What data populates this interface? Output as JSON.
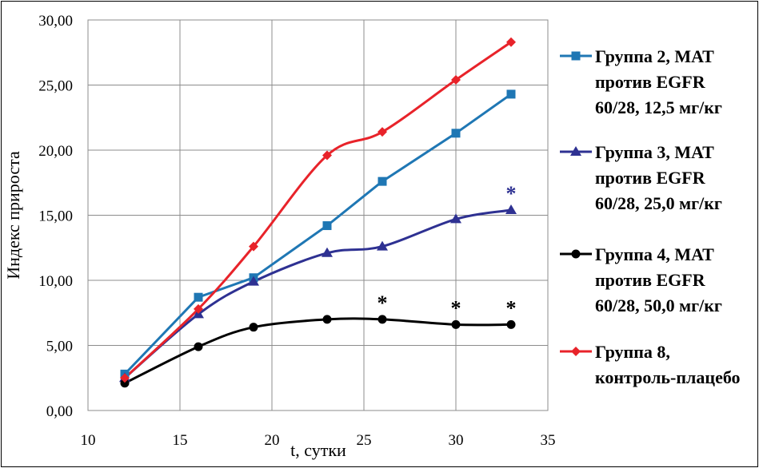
{
  "chart_data": {
    "type": "line",
    "title": "",
    "xlabel": "t, сутки",
    "ylabel": "Индекс прироста",
    "xlim": [
      10,
      35
    ],
    "ylim": [
      0,
      30
    ],
    "x_ticks": [
      "10",
      "15",
      "20",
      "25",
      "30",
      "35"
    ],
    "y_ticks": [
      "0,00",
      "5,00",
      "10,00",
      "15,00",
      "20,00",
      "25,00",
      "30,00"
    ],
    "grid": true,
    "legend_position": "right",
    "series": [
      {
        "name": "Группа 2, МАТ против EGFR 60/28, 12,5 мг/кг",
        "legend_lines": [
          "Группа 2, МАТ",
          "против EGFR",
          "60/28, 12,5 мг/кг"
        ],
        "color": "#1f77b4",
        "marker": "square",
        "x": [
          12,
          16,
          19,
          23,
          26,
          30,
          33
        ],
        "values": [
          2.8,
          8.7,
          10.2,
          14.2,
          17.6,
          21.3,
          24.3
        ]
      },
      {
        "name": "Группа 3, МАТ против EGFR 60/28, 25,0 мг/кг",
        "legend_lines": [
          "Группа 3, МАТ",
          "против EGFR",
          "60/28, 25,0 мг/кг"
        ],
        "color": "#2e3192",
        "marker": "triangle",
        "x": [
          12,
          16,
          19,
          23,
          26,
          30,
          33
        ],
        "values": [
          2.5,
          7.4,
          9.9,
          12.1,
          12.6,
          14.7,
          15.4
        ]
      },
      {
        "name": "Группа 4, МАТ против EGFR 60/28, 50,0 мг/кг",
        "legend_lines": [
          "Группа 4, МАТ",
          "против EGFR",
          "60/28, 50,0 мг/кг"
        ],
        "color": "#000000",
        "marker": "circle",
        "x": [
          12,
          16,
          19,
          23,
          26,
          30,
          33
        ],
        "values": [
          2.1,
          4.9,
          6.4,
          7.0,
          7.0,
          6.6,
          6.6
        ]
      },
      {
        "name": "Группа 8, контроль-плацебо",
        "legend_lines": [
          "Группа 8,",
          "контроль-плацебо"
        ],
        "color": "#e8232a",
        "marker": "diamond",
        "x": [
          12,
          16,
          19,
          23,
          26,
          30,
          33
        ],
        "values": [
          2.5,
          7.8,
          12.6,
          19.6,
          21.4,
          25.4,
          28.3
        ]
      }
    ],
    "annotations": [
      {
        "text": "*",
        "x": 33,
        "y": 17.0,
        "color": "#2e3192"
      },
      {
        "text": "*",
        "x": 26,
        "y": 8.6,
        "color": "#000000"
      },
      {
        "text": "*",
        "x": 30,
        "y": 8.2,
        "color": "#000000"
      },
      {
        "text": "*",
        "x": 33,
        "y": 8.2,
        "color": "#000000"
      }
    ]
  }
}
